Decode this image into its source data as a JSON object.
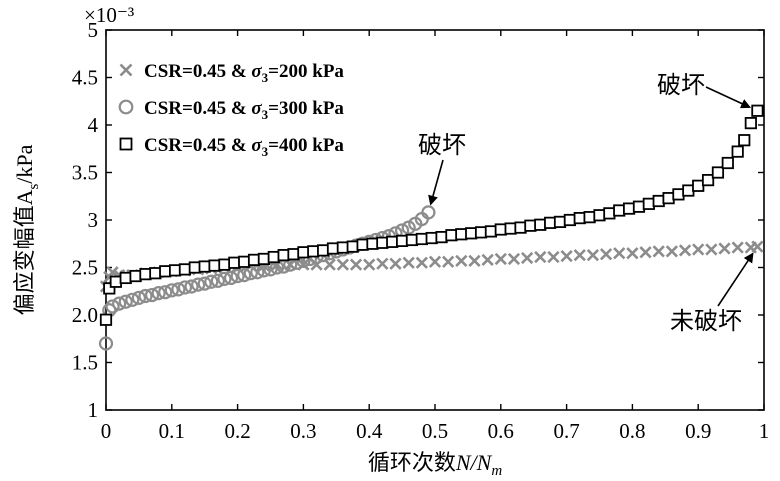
{
  "chart_data": {
    "type": "scatter",
    "title": "",
    "xlabel": "循环次数N/N_m",
    "ylabel": "偏应变幅值A_s/kPa",
    "exponent_label": "×10⁻³",
    "xlim": [
      0,
      1
    ],
    "ylim": [
      1,
      5
    ],
    "x_ticks": [
      "0",
      "0.1",
      "0.2",
      "0.3",
      "0.4",
      "0.5",
      "0.6",
      "0.7",
      "0.8",
      "0.9",
      "1"
    ],
    "y_ticks": [
      "1",
      "1.5",
      "2.0",
      "2.5",
      "3",
      "3.5",
      "4",
      "4.5",
      "5"
    ],
    "legend_position": "top-left",
    "series": [
      {
        "name": "CSR=0.45 & σ3=200 kPa",
        "marker": "x",
        "color": "#8c8c8c",
        "points": [
          [
            0.0,
            2.3
          ],
          [
            0.005,
            2.4
          ],
          [
            0.01,
            2.45
          ],
          [
            0.02,
            2.42
          ],
          [
            0.03,
            2.41
          ],
          [
            0.04,
            2.42
          ],
          [
            0.06,
            2.44
          ],
          [
            0.08,
            2.45
          ],
          [
            0.1,
            2.46
          ],
          [
            0.12,
            2.47
          ],
          [
            0.14,
            2.48
          ],
          [
            0.16,
            2.49
          ],
          [
            0.18,
            2.5
          ],
          [
            0.2,
            2.51
          ],
          [
            0.22,
            2.52
          ],
          [
            0.24,
            2.52
          ],
          [
            0.26,
            2.53
          ],
          [
            0.28,
            2.53
          ],
          [
            0.3,
            2.53
          ],
          [
            0.32,
            2.53
          ],
          [
            0.34,
            2.53
          ],
          [
            0.36,
            2.53
          ],
          [
            0.38,
            2.53
          ],
          [
            0.4,
            2.53
          ],
          [
            0.42,
            2.54
          ],
          [
            0.44,
            2.54
          ],
          [
            0.46,
            2.55
          ],
          [
            0.48,
            2.55
          ],
          [
            0.5,
            2.56
          ],
          [
            0.52,
            2.56
          ],
          [
            0.54,
            2.57
          ],
          [
            0.56,
            2.57
          ],
          [
            0.58,
            2.58
          ],
          [
            0.6,
            2.59
          ],
          [
            0.62,
            2.59
          ],
          [
            0.64,
            2.6
          ],
          [
            0.66,
            2.61
          ],
          [
            0.68,
            2.61
          ],
          [
            0.7,
            2.62
          ],
          [
            0.72,
            2.63
          ],
          [
            0.74,
            2.63
          ],
          [
            0.76,
            2.64
          ],
          [
            0.78,
            2.65
          ],
          [
            0.8,
            2.65
          ],
          [
            0.82,
            2.66
          ],
          [
            0.84,
            2.67
          ],
          [
            0.86,
            2.67
          ],
          [
            0.88,
            2.68
          ],
          [
            0.9,
            2.69
          ],
          [
            0.92,
            2.69
          ],
          [
            0.94,
            2.7
          ],
          [
            0.96,
            2.71
          ],
          [
            0.98,
            2.71
          ],
          [
            0.99,
            2.72
          ]
        ]
      },
      {
        "name": "CSR=0.45 & σ3=300 kPa",
        "marker": "circle",
        "color": "#8c8c8c",
        "points": [
          [
            0.0,
            1.7
          ],
          [
            0.005,
            2.05
          ],
          [
            0.01,
            2.09
          ],
          [
            0.02,
            2.12
          ],
          [
            0.03,
            2.14
          ],
          [
            0.04,
            2.16
          ],
          [
            0.05,
            2.18
          ],
          [
            0.06,
            2.2
          ],
          [
            0.07,
            2.21
          ],
          [
            0.08,
            2.23
          ],
          [
            0.09,
            2.24
          ],
          [
            0.1,
            2.26
          ],
          [
            0.11,
            2.27
          ],
          [
            0.12,
            2.29
          ],
          [
            0.13,
            2.3
          ],
          [
            0.14,
            2.32
          ],
          [
            0.15,
            2.33
          ],
          [
            0.16,
            2.35
          ],
          [
            0.17,
            2.36
          ],
          [
            0.18,
            2.38
          ],
          [
            0.19,
            2.39
          ],
          [
            0.2,
            2.41
          ],
          [
            0.21,
            2.42
          ],
          [
            0.22,
            2.44
          ],
          [
            0.23,
            2.45
          ],
          [
            0.24,
            2.47
          ],
          [
            0.25,
            2.48
          ],
          [
            0.26,
            2.5
          ],
          [
            0.27,
            2.51
          ],
          [
            0.28,
            2.53
          ],
          [
            0.29,
            2.55
          ],
          [
            0.3,
            2.57
          ],
          [
            0.31,
            2.59
          ],
          [
            0.32,
            2.61
          ],
          [
            0.33,
            2.63
          ],
          [
            0.34,
            2.65
          ],
          [
            0.35,
            2.67
          ],
          [
            0.36,
            2.69
          ],
          [
            0.37,
            2.71
          ],
          [
            0.38,
            2.73
          ],
          [
            0.39,
            2.75
          ],
          [
            0.4,
            2.77
          ],
          [
            0.41,
            2.79
          ],
          [
            0.42,
            2.81
          ],
          [
            0.43,
            2.83
          ],
          [
            0.44,
            2.86
          ],
          [
            0.45,
            2.89
          ],
          [
            0.46,
            2.92
          ],
          [
            0.47,
            2.96
          ],
          [
            0.48,
            3.01
          ],
          [
            0.49,
            3.08
          ]
        ]
      },
      {
        "name": "CSR=0.45 & σ3=400 kPa",
        "marker": "square",
        "color": "#000000",
        "points": [
          [
            0.0,
            1.95
          ],
          [
            0.005,
            2.28
          ],
          [
            0.015,
            2.35
          ],
          [
            0.03,
            2.39
          ],
          [
            0.045,
            2.41
          ],
          [
            0.06,
            2.43
          ],
          [
            0.075,
            2.44
          ],
          [
            0.09,
            2.46
          ],
          [
            0.105,
            2.47
          ],
          [
            0.12,
            2.48
          ],
          [
            0.135,
            2.5
          ],
          [
            0.15,
            2.51
          ],
          [
            0.165,
            2.52
          ],
          [
            0.18,
            2.53
          ],
          [
            0.195,
            2.55
          ],
          [
            0.21,
            2.56
          ],
          [
            0.225,
            2.58
          ],
          [
            0.24,
            2.59
          ],
          [
            0.255,
            2.61
          ],
          [
            0.27,
            2.63
          ],
          [
            0.285,
            2.64
          ],
          [
            0.3,
            2.66
          ],
          [
            0.315,
            2.67
          ],
          [
            0.33,
            2.68
          ],
          [
            0.345,
            2.7
          ],
          [
            0.36,
            2.71
          ],
          [
            0.375,
            2.72
          ],
          [
            0.39,
            2.74
          ],
          [
            0.405,
            2.75
          ],
          [
            0.42,
            2.76
          ],
          [
            0.435,
            2.77
          ],
          [
            0.45,
            2.78
          ],
          [
            0.465,
            2.79
          ],
          [
            0.48,
            2.8
          ],
          [
            0.495,
            2.81
          ],
          [
            0.51,
            2.82
          ],
          [
            0.525,
            2.84
          ],
          [
            0.54,
            2.85
          ],
          [
            0.555,
            2.86
          ],
          [
            0.57,
            2.87
          ],
          [
            0.585,
            2.88
          ],
          [
            0.6,
            2.9
          ],
          [
            0.615,
            2.91
          ],
          [
            0.63,
            2.92
          ],
          [
            0.645,
            2.94
          ],
          [
            0.66,
            2.95
          ],
          [
            0.675,
            2.97
          ],
          [
            0.69,
            2.98
          ],
          [
            0.705,
            3.0
          ],
          [
            0.72,
            3.02
          ],
          [
            0.735,
            3.03
          ],
          [
            0.75,
            3.05
          ],
          [
            0.765,
            3.07
          ],
          [
            0.78,
            3.1
          ],
          [
            0.795,
            3.12
          ],
          [
            0.81,
            3.14
          ],
          [
            0.825,
            3.17
          ],
          [
            0.84,
            3.2
          ],
          [
            0.855,
            3.23
          ],
          [
            0.87,
            3.27
          ],
          [
            0.885,
            3.31
          ],
          [
            0.9,
            3.36
          ],
          [
            0.915,
            3.42
          ],
          [
            0.93,
            3.5
          ],
          [
            0.945,
            3.6
          ],
          [
            0.96,
            3.72
          ],
          [
            0.97,
            3.84
          ],
          [
            0.98,
            4.02
          ],
          [
            0.99,
            4.15
          ]
        ]
      }
    ],
    "annotations": [
      {
        "text": "破坏",
        "target": [
          0.49,
          3.08
        ]
      },
      {
        "text": "破坏",
        "target": [
          0.99,
          4.15
        ]
      },
      {
        "text": "未破坏",
        "target": [
          0.99,
          2.72
        ]
      }
    ]
  }
}
